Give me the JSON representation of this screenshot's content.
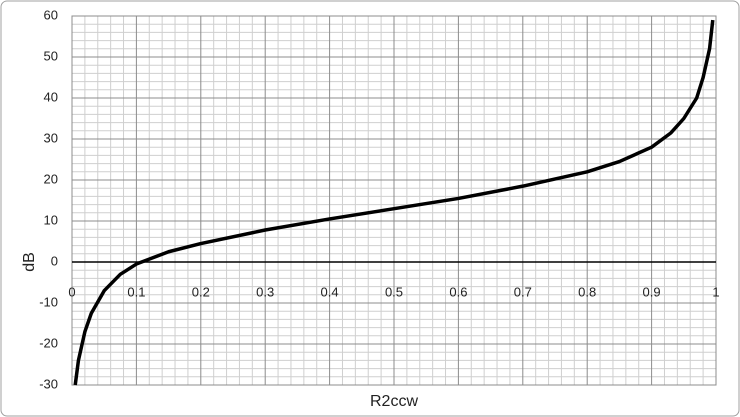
{
  "chart_data": {
    "type": "line",
    "x_label": "R2ccw",
    "y_label": "dB",
    "x": [
      0.005,
      0.01,
      0.02,
      0.03,
      0.05,
      0.075,
      0.1,
      0.15,
      0.2,
      0.3,
      0.4,
      0.5,
      0.6,
      0.7,
      0.8,
      0.85,
      0.9,
      0.93,
      0.95,
      0.97,
      0.98,
      0.99,
      0.995
    ],
    "series": [
      {
        "name": "dB",
        "color": "#000000",
        "values": [
          -30,
          -24,
          -17,
          -12.5,
          -7,
          -3,
          -0.5,
          2.5,
          4.5,
          7.8,
          10.5,
          13,
          15.5,
          18.5,
          22,
          24.5,
          28,
          31.5,
          35,
          40,
          45,
          52,
          59
        ]
      }
    ],
    "xlim": [
      0,
      1
    ],
    "xticks": [
      0,
      0.1,
      0.2,
      0.3,
      0.4,
      0.5,
      0.6,
      0.7,
      0.8,
      0.9,
      1
    ],
    "ylim": [
      -30,
      60
    ],
    "yticks": [
      -30,
      -20,
      -10,
      0,
      10,
      20,
      30,
      40,
      50,
      60
    ],
    "grid": true,
    "minor_grid": true
  }
}
